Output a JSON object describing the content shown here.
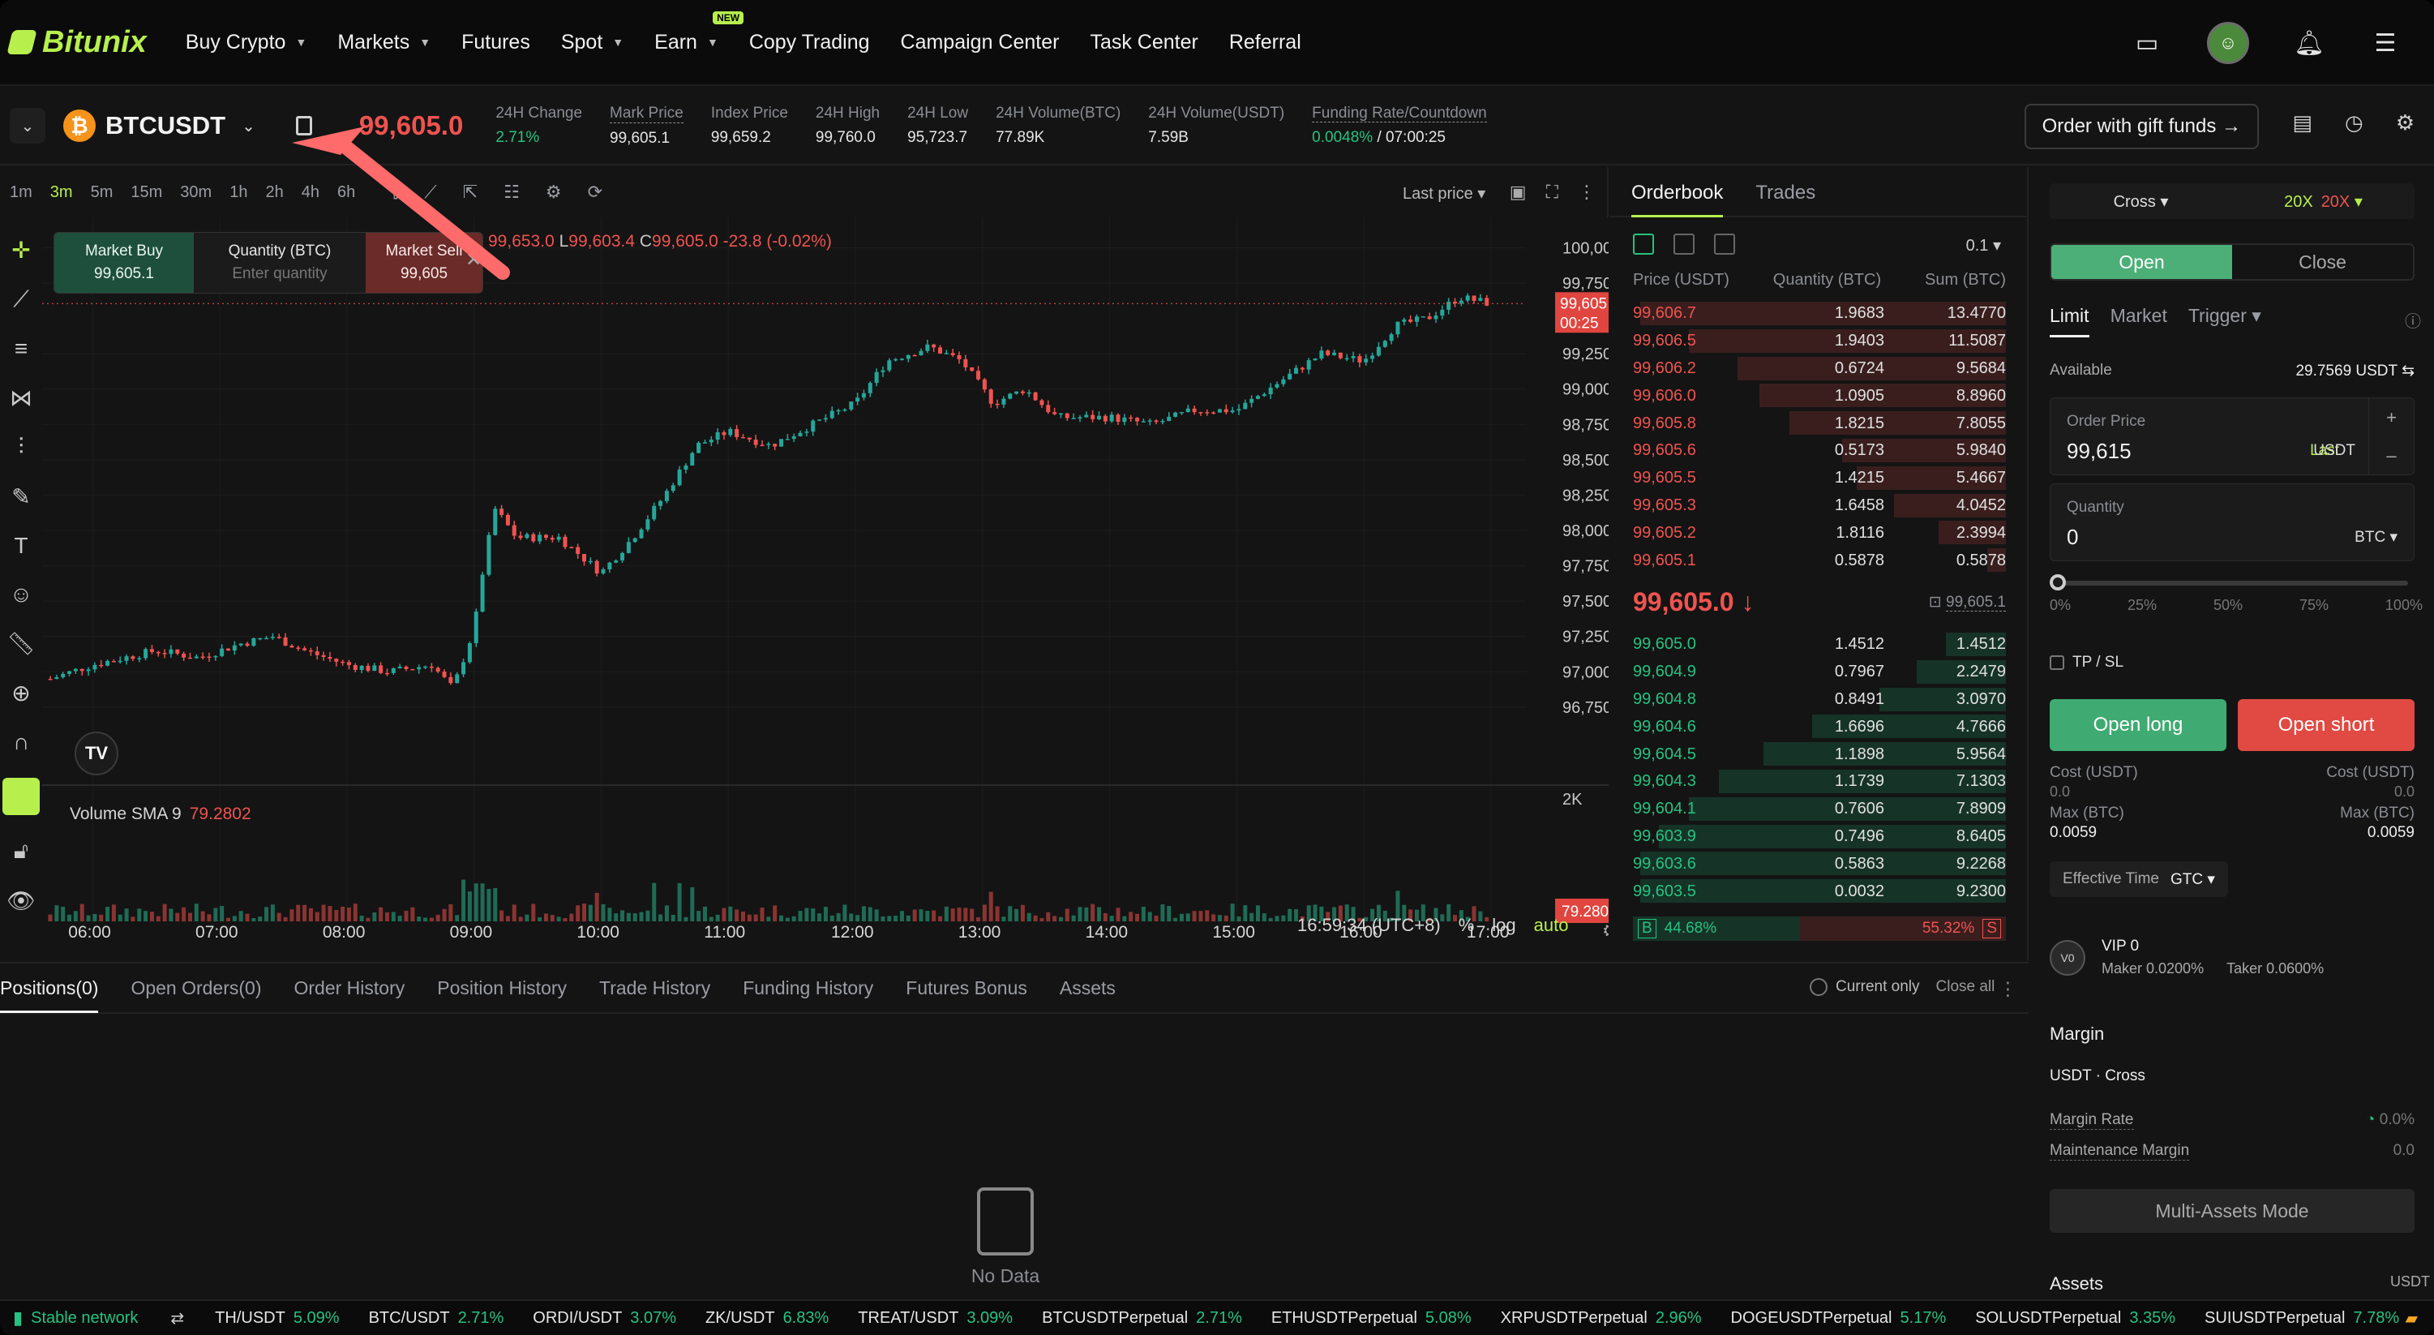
{
  "brand": {
    "name": "Bitunix"
  },
  "nav": {
    "items": [
      {
        "label": "Buy Crypto",
        "caret": true
      },
      {
        "label": "Markets",
        "caret": true
      },
      {
        "label": "Futures",
        "caret": false
      },
      {
        "label": "Spot",
        "caret": true
      },
      {
        "label": "Earn",
        "caret": true
      },
      {
        "label": "Copy Trading",
        "caret": false
      },
      {
        "label": "Campaign Center",
        "caret": false
      },
      {
        "label": "Task Center",
        "caret": false
      },
      {
        "label": "Referral",
        "caret": false
      }
    ],
    "earn_badge": "NEW"
  },
  "ticker": {
    "symbol": "BTCUSDT",
    "last_price": "99,605.0",
    "stats": [
      {
        "label": "24H Change",
        "value": "2.71%",
        "positive": true
      },
      {
        "label": "Mark Price",
        "value": "99,605.1"
      },
      {
        "label": "Index Price",
        "value": "99,659.2"
      },
      {
        "label": "24H High",
        "value": "99,760.0"
      },
      {
        "label": "24H Low",
        "value": "95,723.7"
      },
      {
        "label": "24H Volume(BTC)",
        "value": "77.89K"
      },
      {
        "label": "24H Volume(USDT)",
        "value": "7.59B"
      }
    ],
    "funding": {
      "label": "Funding Rate/Countdown",
      "rate": "0.0048%",
      "countdown": "/ 07:00:25"
    },
    "gift_button": "Order with gift funds →"
  },
  "chart_toolbar": {
    "timeframes": [
      "1m",
      "3m",
      "5m",
      "15m",
      "30m",
      "1h",
      "2h",
      "4h",
      "6h"
    ],
    "active_timeframe": "3m",
    "price_source": "Last price"
  },
  "trade_widget": {
    "buy_label": "Market Buy",
    "buy_price": "99,605.1",
    "qty_label": "Quantity (BTC)",
    "qty_placeholder": "Enter quantity",
    "sell_label": "Market Sell",
    "sell_price": "99,605"
  },
  "ohlc": {
    "h_label": "H",
    "h": "99,653.0",
    "l_label": "L",
    "l": "99,603.4",
    "c_label": "C",
    "c": "99,605.0",
    "chg": "-23.8 (-0.02%)"
  },
  "volume_indicator": {
    "label": "Volume SMA 9",
    "value": "79.2802"
  },
  "chart_footer": {
    "time": "16:59:34 (UTC+8)",
    "pct": "%",
    "log": "log",
    "auto": "auto"
  },
  "chart_data": {
    "type": "candlestick",
    "ylim": [
      96600,
      100100
    ],
    "y_ticks": [
      "100,000.0",
      "99,750.0",
      "99,250.0",
      "99,000.0",
      "98,750.0",
      "98,500.0",
      "98,250.0",
      "98,000.0",
      "97,750.0",
      "97,500.0",
      "97,250.0",
      "97,000.0",
      "96,750.0"
    ],
    "y_tick_values": [
      100000,
      99750,
      99250,
      99000,
      98750,
      98500,
      98250,
      98000,
      97750,
      97500,
      97250,
      97000,
      96750
    ],
    "x_ticks": [
      "06:00",
      "07:00",
      "08:00",
      "09:00",
      "10:00",
      "11:00",
      "12:00",
      "13:00",
      "14:00",
      "15:00",
      "16:00",
      "17:00"
    ],
    "last_price_tag": "99,605.0",
    "countdown_tag": "00:25",
    "volume_axis_label": "2K",
    "volume_tag": "79.2802",
    "close_path": [
      [
        "05:40",
        96950
      ],
      [
        "06:00",
        97050
      ],
      [
        "06:30",
        97150
      ],
      [
        "06:50",
        97100
      ],
      [
        "07:10",
        97200
      ],
      [
        "07:25",
        97250
      ],
      [
        "07:40",
        97150
      ],
      [
        "08:00",
        97050
      ],
      [
        "08:20",
        97000
      ],
      [
        "08:40",
        97050
      ],
      [
        "08:50",
        96880
      ],
      [
        "09:00",
        97300
      ],
      [
        "09:05",
        97800
      ],
      [
        "09:10",
        98150
      ],
      [
        "09:20",
        97950
      ],
      [
        "09:40",
        97950
      ],
      [
        "10:00",
        97700
      ],
      [
        "10:15",
        97950
      ],
      [
        "10:30",
        98250
      ],
      [
        "10:45",
        98600
      ],
      [
        "11:00",
        98700
      ],
      [
        "11:20",
        98600
      ],
      [
        "11:40",
        98750
      ],
      [
        "12:00",
        98900
      ],
      [
        "12:15",
        99200
      ],
      [
        "12:35",
        99300
      ],
      [
        "12:50",
        99200
      ],
      [
        "13:05",
        98900
      ],
      [
        "13:20",
        99000
      ],
      [
        "13:35",
        98800
      ],
      [
        "14:00",
        98800
      ],
      [
        "14:20",
        98750
      ],
      [
        "14:40",
        98850
      ],
      [
        "15:00",
        98850
      ],
      [
        "15:20",
        99050
      ],
      [
        "15:40",
        99250
      ],
      [
        "16:00",
        99200
      ],
      [
        "16:15",
        99450
      ],
      [
        "16:30",
        99500
      ],
      [
        "16:45",
        99650
      ],
      [
        "17:00",
        99605
      ]
    ]
  },
  "orderbook": {
    "tabs": [
      "Orderbook",
      "Trades"
    ],
    "active_tab": "Orderbook",
    "step": "0.1",
    "headers": [
      "Price (USDT)",
      "Quantity (BTC)",
      "Sum (BTC)"
    ],
    "asks": [
      {
        "price": "99,606.7",
        "qty": "1.9683",
        "sum": "13.4770",
        "depth": 0.98
      },
      {
        "price": "99,606.5",
        "qty": "1.9403",
        "sum": "11.5087",
        "depth": 0.85
      },
      {
        "price": "99,606.2",
        "qty": "0.6724",
        "sum": "9.5684",
        "depth": 0.72
      },
      {
        "price": "99,606.0",
        "qty": "1.0905",
        "sum": "8.8960",
        "depth": 0.66
      },
      {
        "price": "99,605.8",
        "qty": "1.8215",
        "sum": "7.8055",
        "depth": 0.58
      },
      {
        "price": "99,605.6",
        "qty": "0.5173",
        "sum": "5.9840",
        "depth": 0.44
      },
      {
        "price": "99,605.5",
        "qty": "1.4215",
        "sum": "5.4667",
        "depth": 0.4
      },
      {
        "price": "99,605.3",
        "qty": "1.6458",
        "sum": "4.0452",
        "depth": 0.3
      },
      {
        "price": "99,605.2",
        "qty": "1.8116",
        "sum": "2.3994",
        "depth": 0.18
      },
      {
        "price": "99,605.1",
        "qty": "0.5878",
        "sum": "0.5878",
        "depth": 0.05
      }
    ],
    "mid_price": "99,605.0 ↓",
    "mark_price": "99,605.1",
    "bids": [
      {
        "price": "99,605.0",
        "qty": "1.4512",
        "sum": "1.4512",
        "depth": 0.16
      },
      {
        "price": "99,604.9",
        "qty": "0.7967",
        "sum": "2.2479",
        "depth": 0.24
      },
      {
        "price": "99,604.8",
        "qty": "0.8491",
        "sum": "3.0970",
        "depth": 0.34
      },
      {
        "price": "99,604.6",
        "qty": "1.6696",
        "sum": "4.7666",
        "depth": 0.52
      },
      {
        "price": "99,604.5",
        "qty": "1.1898",
        "sum": "5.9564",
        "depth": 0.65
      },
      {
        "price": "99,604.3",
        "qty": "1.1739",
        "sum": "7.1303",
        "depth": 0.77
      },
      {
        "price": "99,604.1",
        "qty": "0.7606",
        "sum": "7.8909",
        "depth": 0.85
      },
      {
        "price": "99,603.9",
        "qty": "0.7496",
        "sum": "8.6405",
        "depth": 0.93
      },
      {
        "price": "99,603.6",
        "qty": "0.5863",
        "sum": "9.2268",
        "depth": 0.98
      },
      {
        "price": "99,603.5",
        "qty": "0.0032",
        "sum": "9.2300",
        "depth": 0.98
      }
    ],
    "ratio": {
      "b_label": "B",
      "b": "44.68%",
      "s": "55.32%",
      "s_label": "S",
      "b_frac": 0.4468
    }
  },
  "order_panel": {
    "margin_mode": "Cross",
    "leverage_long": "20X",
    "leverage_short": "20X",
    "open_label": "Open",
    "close_label": "Close",
    "types": [
      "Limit",
      "Market",
      "Trigger"
    ],
    "active_type": "Limit",
    "available_label": "Available",
    "available_value": "29.7569 USDT",
    "order_price_label": "Order Price",
    "order_price_value": "99,615",
    "last_label": "Last",
    "price_unit": "USDT",
    "quantity_label": "Quantity",
    "quantity_value": "0",
    "qty_unit": "BTC",
    "slider_marks": [
      "0%",
      "25%",
      "50%",
      "75%",
      "100%"
    ],
    "slider_level": 0,
    "tpsl_label": "TP / SL",
    "open_long": "Open long",
    "open_short": "Open short",
    "cost_label": "Cost (USDT)",
    "cost_long": "0.0",
    "cost_short": "0.0",
    "max_label": "Max (BTC)",
    "max_long": "0.0059",
    "max_short": "0.0059",
    "eff_label": "Effective Time",
    "eff_value": "GTC",
    "vip_level": "VIP 0",
    "vip_badge": "V0",
    "maker_fee": "Maker 0.0200%",
    "taker_fee": "Taker 0.0600%",
    "margin_title": "Margin",
    "margin_sub": "USDT · Cross",
    "margin_rate_label": "Margin Rate",
    "margin_rate_value": "0.0%",
    "maint_label": "Maintenance Margin",
    "maint_value": "0.0",
    "multi_assets": "Multi-Assets Mode",
    "assets_title": "Assets",
    "assets_unit": "USDT"
  },
  "positions": {
    "tabs": [
      "Positions(0)",
      "Open Orders(0)",
      "Order History",
      "Position History",
      "Trade History",
      "Funding History",
      "Futures Bonus",
      "Assets"
    ],
    "active_tab": "Positions(0)",
    "current_only": "Current only",
    "close_all": "Close all",
    "empty": "No Data"
  },
  "bottombar": {
    "network": "Stable network",
    "tickers": [
      {
        "name": "TH/USDT",
        "chg": "5.09%"
      },
      {
        "name": "BTC/USDT",
        "chg": "2.71%"
      },
      {
        "name": "ORDI/USDT",
        "chg": "3.07%"
      },
      {
        "name": "ZK/USDT",
        "chg": "6.83%"
      },
      {
        "name": "TREAT/USDT",
        "chg": "3.09%"
      },
      {
        "name": "BTCUSDTPerpetual",
        "chg": "2.71%"
      },
      {
        "name": "ETHUSDTPerpetual",
        "chg": "5.08%"
      },
      {
        "name": "XRPUSDTPerpetual",
        "chg": "2.96%"
      },
      {
        "name": "DOGEUSDTPerpetual",
        "chg": "5.17%"
      },
      {
        "name": "SOLUSDTPerpetual",
        "chg": "3.35%"
      },
      {
        "name": "SUIUSDTPerpetual",
        "chg": "7.78%"
      }
    ]
  },
  "colors": {
    "accent": "#b7ef4d",
    "up": "#26c281",
    "down": "#ef5350",
    "bg": "#141414"
  }
}
